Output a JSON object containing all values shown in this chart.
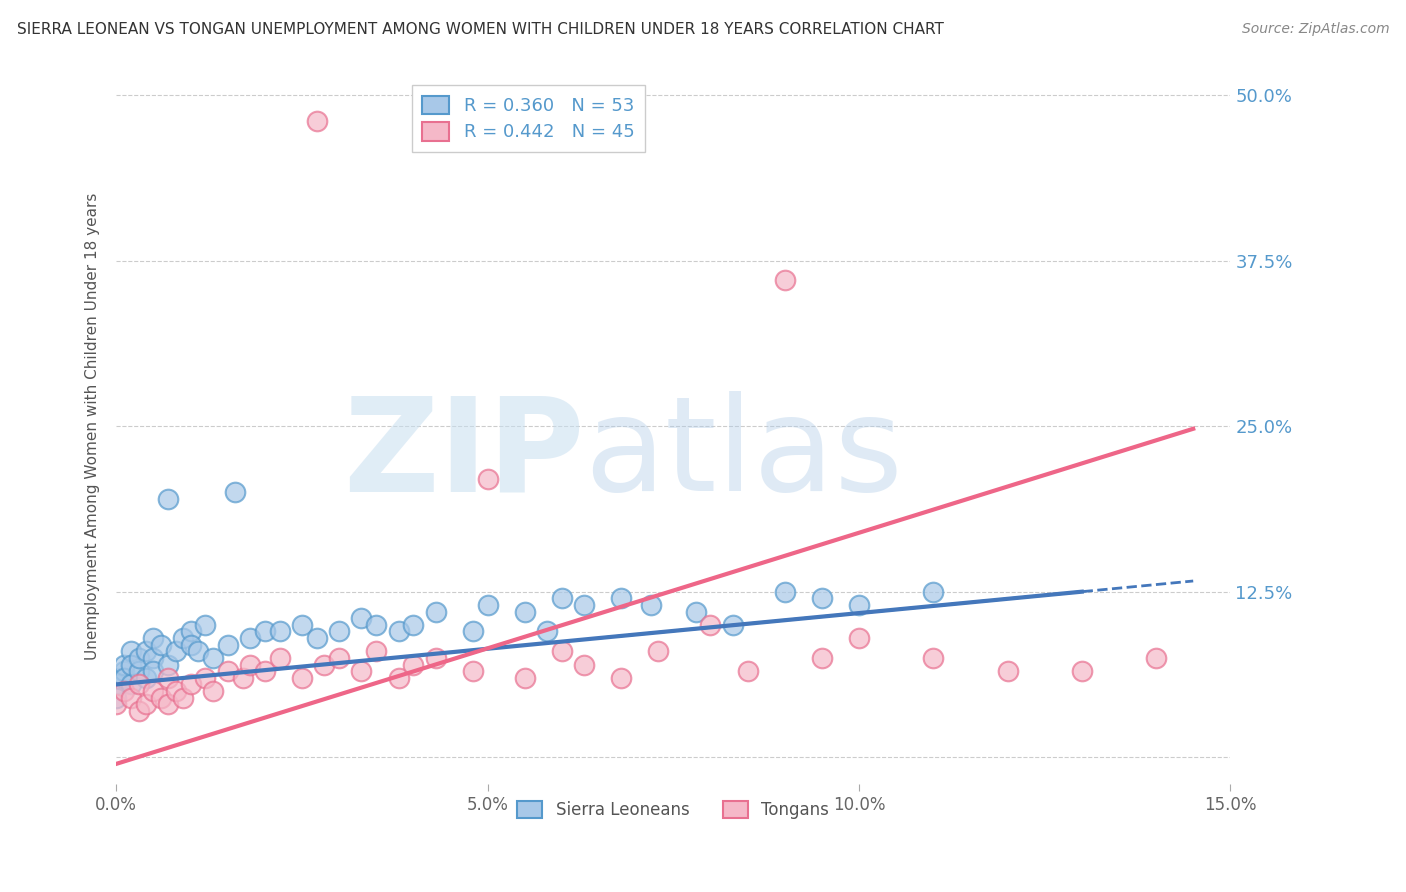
{
  "title": "SIERRA LEONEAN VS TONGAN UNEMPLOYMENT AMONG WOMEN WITH CHILDREN UNDER 18 YEARS CORRELATION CHART",
  "source": "Source: ZipAtlas.com",
  "ylabel": "Unemployment Among Women with Children Under 18 years",
  "legend_labels": [
    "Sierra Leoneans",
    "Tongans"
  ],
  "r_sierra": 0.36,
  "n_sierra": 53,
  "r_tongan": 0.442,
  "n_tongan": 45,
  "blue_dot_face": "#a8c8e8",
  "blue_dot_edge": "#5599cc",
  "pink_dot_face": "#f5b8c8",
  "pink_dot_edge": "#e87090",
  "blue_line_color": "#4477bb",
  "pink_line_color": "#ee6688",
  "xlim": [
    0.0,
    0.15
  ],
  "ylim": [
    -0.02,
    0.52
  ],
  "yticks": [
    0.0,
    0.125,
    0.25,
    0.375,
    0.5
  ],
  "ytick_labels": [
    "",
    "12.5%",
    "25.0%",
    "37.5%",
    "50.0%"
  ],
  "xticks": [
    0.0,
    0.05,
    0.1,
    0.15
  ],
  "xtick_labels": [
    "0.0%",
    "5.0%",
    "10.0%",
    "15.0%"
  ],
  "watermark_zip": "ZIP",
  "watermark_atlas": "atlas",
  "watermark_color_zip": "#c8dff0",
  "watermark_color_atlas": "#b0cce8",
  "sierra_x": [
    0.0,
    0.0,
    0.0,
    0.001,
    0.001,
    0.001,
    0.002,
    0.002,
    0.002,
    0.003,
    0.003,
    0.004,
    0.004,
    0.005,
    0.005,
    0.005,
    0.006,
    0.007,
    0.007,
    0.008,
    0.009,
    0.01,
    0.01,
    0.011,
    0.012,
    0.013,
    0.015,
    0.016,
    0.018,
    0.02,
    0.022,
    0.025,
    0.027,
    0.03,
    0.033,
    0.035,
    0.038,
    0.04,
    0.043,
    0.048,
    0.05,
    0.055,
    0.058,
    0.06,
    0.063,
    0.068,
    0.072,
    0.078,
    0.083,
    0.09,
    0.095,
    0.1,
    0.11
  ],
  "sierra_y": [
    0.06,
    0.055,
    0.045,
    0.065,
    0.07,
    0.06,
    0.08,
    0.055,
    0.07,
    0.065,
    0.075,
    0.06,
    0.08,
    0.075,
    0.065,
    0.09,
    0.085,
    0.07,
    0.195,
    0.08,
    0.09,
    0.095,
    0.085,
    0.08,
    0.1,
    0.075,
    0.085,
    0.2,
    0.09,
    0.095,
    0.095,
    0.1,
    0.09,
    0.095,
    0.105,
    0.1,
    0.095,
    0.1,
    0.11,
    0.095,
    0.115,
    0.11,
    0.095,
    0.12,
    0.115,
    0.12,
    0.115,
    0.11,
    0.1,
    0.125,
    0.12,
    0.115,
    0.125
  ],
  "tongan_x": [
    0.0,
    0.001,
    0.002,
    0.003,
    0.003,
    0.004,
    0.005,
    0.006,
    0.007,
    0.007,
    0.008,
    0.009,
    0.01,
    0.012,
    0.013,
    0.015,
    0.017,
    0.018,
    0.02,
    0.022,
    0.025,
    0.027,
    0.028,
    0.03,
    0.033,
    0.035,
    0.038,
    0.04,
    0.043,
    0.048,
    0.05,
    0.055,
    0.06,
    0.063,
    0.068,
    0.073,
    0.08,
    0.085,
    0.09,
    0.095,
    0.1,
    0.11,
    0.12,
    0.13,
    0.14
  ],
  "tongan_y": [
    0.04,
    0.05,
    0.045,
    0.035,
    0.055,
    0.04,
    0.05,
    0.045,
    0.04,
    0.06,
    0.05,
    0.045,
    0.055,
    0.06,
    0.05,
    0.065,
    0.06,
    0.07,
    0.065,
    0.075,
    0.06,
    0.48,
    0.07,
    0.075,
    0.065,
    0.08,
    0.06,
    0.07,
    0.075,
    0.065,
    0.21,
    0.06,
    0.08,
    0.07,
    0.06,
    0.08,
    0.1,
    0.065,
    0.36,
    0.075,
    0.09,
    0.075,
    0.065,
    0.065,
    0.075
  ],
  "blue_trendline_x": [
    0.0,
    0.13
  ],
  "blue_trendline_y": [
    0.055,
    0.125
  ],
  "pink_trendline_x": [
    0.0,
    0.145
  ],
  "pink_trendline_y": [
    -0.005,
    0.248
  ]
}
